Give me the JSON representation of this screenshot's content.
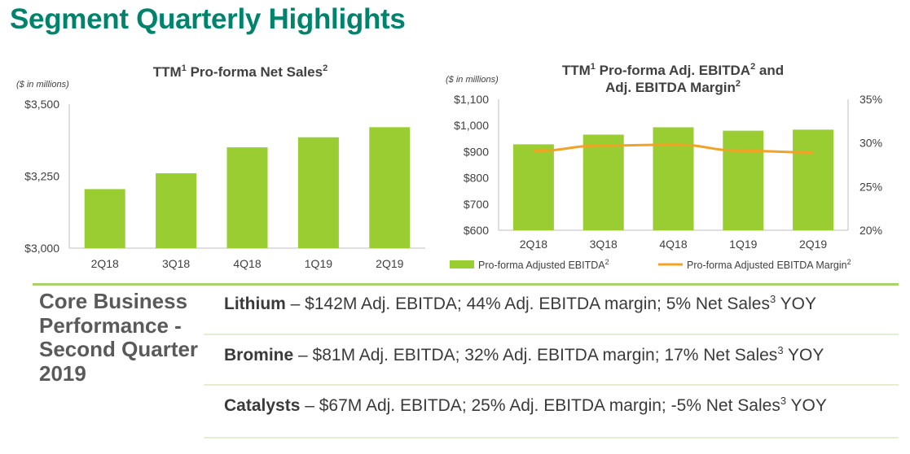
{
  "title": "Segment Quarterly Highlights",
  "colors": {
    "title": "#00836c",
    "bar": "#9acd32",
    "line": "#f4a223",
    "axis": "#bfbfbf",
    "divider": "#a9d26a"
  },
  "chart_data": [
    {
      "type": "bar",
      "title": "TTM",
      "title_sup1": "1",
      "title_rest": " Pro-forma Net Sales",
      "title_sup2": "2",
      "unit_note": "($ in millions)",
      "categories": [
        "2Q18",
        "3Q18",
        "4Q18",
        "1Q19",
        "2Q19"
      ],
      "values": [
        3205,
        3260,
        3350,
        3385,
        3420
      ],
      "ylim": [
        3000,
        3500
      ],
      "yticks": [
        "$3,500",
        "$3,250",
        "$3,000"
      ]
    },
    {
      "type": "bar+line",
      "title_line1_a": "TTM",
      "title_line1_sup1": "1",
      "title_line1_b": " Pro-forma Adj. EBITDA",
      "title_line1_sup2": "2",
      "title_line1_c": " and",
      "title_line2_a": "Adj. EBITDA Margin",
      "title_line2_sup": "2",
      "unit_note": "($ in millions)",
      "categories": [
        "2Q18",
        "3Q18",
        "4Q18",
        "1Q19",
        "2Q19"
      ],
      "series": [
        {
          "name": "Pro-forma Adjusted EBITDA",
          "sup": "2",
          "type": "bar",
          "axis": "left",
          "values": [
            928,
            965,
            993,
            980,
            984
          ]
        },
        {
          "name": "Pro-forma Adjusted EBITDA Margin",
          "sup": "2",
          "type": "line",
          "axis": "right",
          "values": [
            29.1,
            29.7,
            29.8,
            29.1,
            28.9
          ]
        }
      ],
      "ylim_left": [
        600,
        1100
      ],
      "yticks_left": [
        "$1,100",
        "$1,000",
        "$900",
        "$800",
        "$700",
        "$600"
      ],
      "ylim_right": [
        20,
        35
      ],
      "yticks_right": [
        "35%",
        "30%",
        "25%",
        "20%"
      ]
    }
  ],
  "core": {
    "label": "Core Business Performance - Second Quarter 2019",
    "rows": [
      {
        "segment": "Lithium",
        "text_a": " – $142M Adj. EBITDA; 44% Adj. EBITDA margin; 5% Net Sales",
        "sup": "3",
        "text_b": " YOY"
      },
      {
        "segment": "Bromine",
        "text_a": " – $81M Adj. EBITDA; 32% Adj. EBITDA margin; 17% Net Sales",
        "sup": "3",
        "text_b": " YOY"
      },
      {
        "segment": "Catalysts",
        "text_a": " – $67M Adj. EBITDA; 25% Adj. EBITDA margin; -5% Net Sales",
        "sup": "3",
        "text_b": " YOY"
      }
    ]
  }
}
